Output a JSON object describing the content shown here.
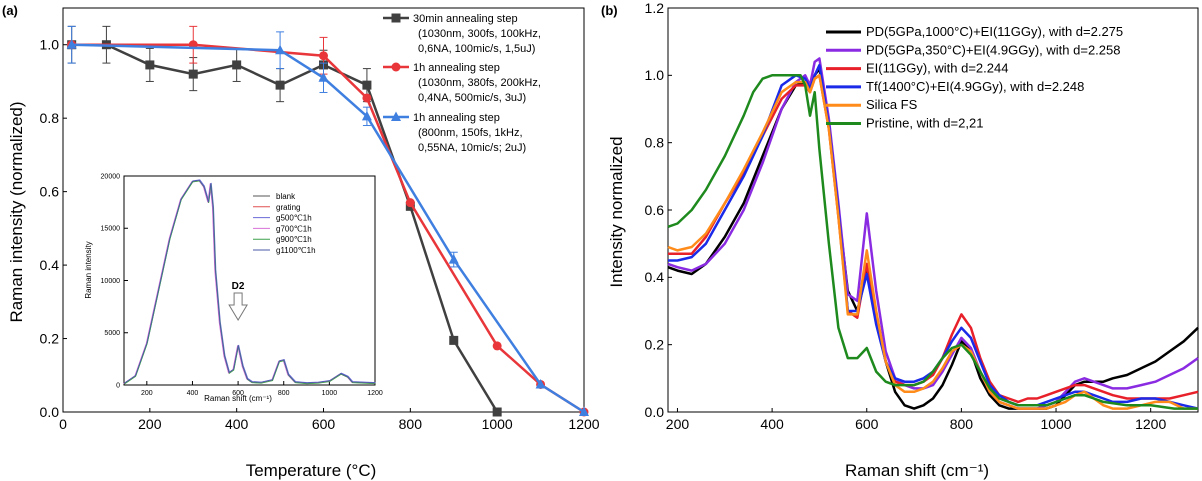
{
  "chart_data": [
    {
      "type": "line",
      "panel_label": "(a)",
      "xlabel": "Temperature (°C)",
      "ylabel": "Raman intensity (normalized)",
      "xlim": [
        0,
        1200
      ],
      "ylim": [
        0.0,
        1.1
      ],
      "xticks": [
        0,
        200,
        400,
        600,
        800,
        1000,
        1200
      ],
      "yticks": [
        0.0,
        0.2,
        0.4,
        0.6,
        0.8,
        1.0
      ],
      "grid": false,
      "legend_position": "top-right",
      "series": [
        {
          "name": "30min annealing step",
          "legend_lines": [
            "30min annealing step",
            "(1030nm, 300fs, 100kHz,",
            "0,6NA, 100mic/s, 1,5uJ)"
          ],
          "color": "#404040",
          "marker": "square",
          "x": [
            20,
            100,
            200,
            300,
            400,
            500,
            600,
            700,
            800,
            900,
            1000
          ],
          "y": [
            1.0,
            1.0,
            0.945,
            0.92,
            0.945,
            0.89,
            0.945,
            0.89,
            0.56,
            0.195,
            0.0
          ],
          "err": [
            0.05,
            0.05,
            0.045,
            0.045,
            0.045,
            0.045,
            0.04,
            0.045,
            0.0,
            0.0,
            0.0
          ]
        },
        {
          "name": "1h annealing step",
          "legend_lines": [
            "1h annealing step",
            "(1030nm, 380fs, 200kHz,",
            "0,4NA, 500mic/s, 3uJ)"
          ],
          "color": "#e8363a",
          "marker": "circle",
          "x": [
            20,
            300,
            600,
            700,
            800,
            1000,
            1100,
            1200
          ],
          "y": [
            1.0,
            1.0,
            0.97,
            0.855,
            0.57,
            0.18,
            0.075,
            0.0
          ],
          "err": [
            0.0,
            0.05,
            0.05,
            0.0,
            0.0,
            0.0,
            0.0,
            0.0
          ]
        },
        {
          "name": "1h annealing step",
          "legend_lines": [
            "1h annealing step",
            "(800nm, 150fs, 1kHz,",
            "0,55NA, 10mic/s; 2uJ)"
          ],
          "color": "#3f7fe0",
          "marker": "triangle",
          "x": [
            20,
            500,
            600,
            700,
            900,
            1100,
            1200
          ],
          "y": [
            1.0,
            0.985,
            0.91,
            0.805,
            0.415,
            0.075,
            0.0
          ],
          "err": [
            0.05,
            0.05,
            0.04,
            0.025,
            0.02,
            0.0,
            0.0
          ]
        }
      ],
      "inset": {
        "xlabel": "Raman shift (cm⁻¹)",
        "ylabel": "Raman intensity",
        "xlim": [
          100,
          1200
        ],
        "ylim": [
          0,
          20000
        ],
        "xticks": [
          200,
          400,
          600,
          800,
          1000,
          1200
        ],
        "yticks": [
          0,
          5000,
          10000,
          15000,
          20000
        ],
        "annotation": "D2",
        "legend": [
          "blank",
          "grating",
          "g500℃1h",
          "g700℃1h",
          "g900℃1h",
          "g1100℃1h"
        ],
        "legend_colors": [
          "#555555",
          "#e05050",
          "#6a6ad8",
          "#d870d8",
          "#3aa04a",
          "#4a5aa8"
        ],
        "x": [
          100,
          150,
          200,
          250,
          300,
          350,
          400,
          430,
          450,
          470,
          480,
          490,
          500,
          520,
          540,
          560,
          580,
          600,
          620,
          640,
          660,
          700,
          750,
          780,
          800,
          820,
          850,
          900,
          950,
          1000,
          1050,
          1080,
          1100,
          1150,
          1200
        ],
        "y": [
          150,
          900,
          4000,
          9000,
          14000,
          17800,
          19500,
          19600,
          19000,
          17500,
          19300,
          17000,
          11000,
          6000,
          2800,
          1200,
          1500,
          3800,
          1800,
          600,
          300,
          250,
          500,
          2300,
          2400,
          1000,
          300,
          200,
          250,
          400,
          1100,
          800,
          300,
          250,
          200
        ]
      }
    },
    {
      "type": "line",
      "panel_label": "(b)",
      "xlabel": "Raman shift (cm⁻¹)",
      "ylabel": "Intensity normalized",
      "xlim": [
        180,
        1300
      ],
      "ylim": [
        0.0,
        1.2
      ],
      "xticks": [
        200,
        400,
        600,
        800,
        1000,
        1200
      ],
      "yticks": [
        0.0,
        0.2,
        0.4,
        0.6,
        0.8,
        1.0,
        1.2
      ],
      "grid": false,
      "legend_position": "top-right",
      "series": [
        {
          "name": "PD(5GPa,1000°C)+EI(11GGy), with d=2.275",
          "color": "#000000",
          "x": [
            180,
            200,
            230,
            260,
            300,
            340,
            380,
            420,
            450,
            470,
            480,
            490,
            500,
            520,
            540,
            560,
            580,
            600,
            620,
            640,
            660,
            680,
            700,
            720,
            740,
            760,
            780,
            800,
            820,
            840,
            860,
            880,
            900,
            920,
            940,
            960,
            980,
            1000,
            1020,
            1040,
            1060,
            1080,
            1100,
            1120,
            1150,
            1180,
            1210,
            1240,
            1270,
            1300
          ],
          "y": [
            0.43,
            0.42,
            0.41,
            0.44,
            0.52,
            0.62,
            0.76,
            0.9,
            0.97,
            0.98,
            0.96,
            1.0,
            1.02,
            0.85,
            0.6,
            0.36,
            0.3,
            0.42,
            0.28,
            0.15,
            0.06,
            0.02,
            0.01,
            0.02,
            0.04,
            0.08,
            0.14,
            0.21,
            0.18,
            0.1,
            0.05,
            0.02,
            0.01,
            0.01,
            0.01,
            0.01,
            0.01,
            0.02,
            0.05,
            0.08,
            0.09,
            0.09,
            0.09,
            0.1,
            0.11,
            0.13,
            0.15,
            0.18,
            0.21,
            0.25
          ]
        },
        {
          "name": "PD(5GPa,350°C)+EI(4.9GGy), with d=2.258",
          "color": "#8a2be2",
          "x": [
            180,
            200,
            230,
            260,
            300,
            340,
            380,
            420,
            450,
            470,
            480,
            490,
            500,
            520,
            540,
            560,
            580,
            600,
            620,
            640,
            660,
            680,
            700,
            720,
            740,
            760,
            780,
            800,
            820,
            840,
            860,
            880,
            900,
            920,
            940,
            960,
            980,
            1000,
            1020,
            1040,
            1060,
            1080,
            1100,
            1120,
            1150,
            1180,
            1210,
            1240,
            1270,
            1300
          ],
          "y": [
            0.44,
            0.43,
            0.42,
            0.44,
            0.5,
            0.6,
            0.74,
            0.9,
            0.98,
            1.0,
            0.97,
            1.04,
            1.05,
            0.87,
            0.62,
            0.35,
            0.33,
            0.59,
            0.36,
            0.18,
            0.1,
            0.08,
            0.07,
            0.07,
            0.08,
            0.12,
            0.17,
            0.22,
            0.19,
            0.12,
            0.06,
            0.03,
            0.02,
            0.01,
            0.01,
            0.01,
            0.02,
            0.03,
            0.06,
            0.09,
            0.1,
            0.09,
            0.08,
            0.07,
            0.07,
            0.08,
            0.09,
            0.11,
            0.13,
            0.16
          ]
        },
        {
          "name": "EI(11GGy), with d=2.244",
          "color": "#e8202a",
          "x": [
            180,
            200,
            230,
            260,
            300,
            340,
            380,
            420,
            450,
            470,
            480,
            490,
            500,
            520,
            540,
            560,
            580,
            600,
            620,
            640,
            660,
            680,
            700,
            720,
            740,
            760,
            780,
            800,
            820,
            840,
            860,
            880,
            900,
            920,
            940,
            960,
            980,
            1000,
            1020,
            1040,
            1060,
            1080,
            1100,
            1120,
            1150,
            1180,
            1210,
            1240,
            1270,
            1300
          ],
          "y": [
            0.47,
            0.47,
            0.47,
            0.52,
            0.62,
            0.71,
            0.82,
            0.93,
            0.97,
            0.97,
            0.95,
            0.99,
            1.0,
            0.84,
            0.58,
            0.3,
            0.28,
            0.44,
            0.28,
            0.15,
            0.09,
            0.08,
            0.08,
            0.09,
            0.11,
            0.16,
            0.23,
            0.29,
            0.25,
            0.16,
            0.09,
            0.05,
            0.04,
            0.03,
            0.04,
            0.04,
            0.05,
            0.06,
            0.07,
            0.08,
            0.08,
            0.07,
            0.06,
            0.05,
            0.04,
            0.04,
            0.04,
            0.04,
            0.05,
            0.06
          ]
        },
        {
          "name": "Tf(1400°C)+EI(4.9GGy), with d=2.248",
          "color": "#1a2ae8",
          "x": [
            180,
            200,
            230,
            260,
            300,
            340,
            380,
            420,
            450,
            470,
            480,
            490,
            500,
            520,
            540,
            560,
            580,
            600,
            620,
            640,
            660,
            680,
            700,
            720,
            740,
            760,
            780,
            800,
            820,
            840,
            860,
            880,
            900,
            920,
            940,
            960,
            980,
            1000,
            1020,
            1040,
            1060,
            1080,
            1100,
            1120,
            1150,
            1180,
            1210,
            1240,
            1270,
            1300
          ],
          "y": [
            0.45,
            0.45,
            0.46,
            0.5,
            0.6,
            0.7,
            0.82,
            0.97,
            1.0,
            0.99,
            0.96,
            1.0,
            1.03,
            0.85,
            0.6,
            0.3,
            0.3,
            0.41,
            0.26,
            0.15,
            0.1,
            0.09,
            0.09,
            0.1,
            0.12,
            0.16,
            0.21,
            0.25,
            0.22,
            0.15,
            0.08,
            0.05,
            0.03,
            0.02,
            0.02,
            0.02,
            0.03,
            0.04,
            0.05,
            0.06,
            0.06,
            0.05,
            0.04,
            0.03,
            0.03,
            0.04,
            0.04,
            0.03,
            0.02,
            0.01
          ]
        },
        {
          "name": "Silica FS",
          "color": "#ff8c1a",
          "x": [
            180,
            200,
            230,
            260,
            300,
            340,
            380,
            420,
            450,
            470,
            480,
            490,
            500,
            520,
            540,
            560,
            580,
            600,
            620,
            640,
            660,
            680,
            700,
            720,
            740,
            760,
            780,
            800,
            820,
            840,
            860,
            880,
            900,
            920,
            940,
            960,
            980,
            1000,
            1020,
            1040,
            1060,
            1080,
            1100,
            1120,
            1150,
            1180,
            1210,
            1240,
            1270,
            1300
          ],
          "y": [
            0.49,
            0.48,
            0.49,
            0.53,
            0.62,
            0.72,
            0.83,
            0.95,
            0.98,
            0.98,
            0.95,
            0.99,
            1.0,
            0.84,
            0.58,
            0.29,
            0.29,
            0.48,
            0.3,
            0.15,
            0.08,
            0.06,
            0.06,
            0.07,
            0.09,
            0.13,
            0.18,
            0.2,
            0.18,
            0.12,
            0.06,
            0.03,
            0.02,
            0.01,
            0.01,
            0.01,
            0.01,
            0.02,
            0.03,
            0.05,
            0.06,
            0.04,
            0.02,
            0.01,
            0.01,
            0.02,
            0.03,
            0.03,
            0.01,
            0.01
          ]
        },
        {
          "name": "Pristine, with d=2,21",
          "color": "#1e8a1e",
          "x": [
            180,
            200,
            230,
            260,
            300,
            340,
            360,
            380,
            400,
            420,
            440,
            460,
            470,
            480,
            490,
            500,
            520,
            540,
            560,
            580,
            600,
            620,
            640,
            660,
            680,
            700,
            720,
            740,
            760,
            780,
            800,
            820,
            840,
            860,
            880,
            900,
            920,
            940,
            960,
            980,
            1000,
            1020,
            1040,
            1060,
            1080,
            1100,
            1150,
            1200,
            1250,
            1300
          ],
          "y": [
            0.55,
            0.56,
            0.6,
            0.66,
            0.76,
            0.88,
            0.95,
            0.99,
            1.0,
            1.0,
            1.0,
            1.0,
            0.97,
            0.88,
            0.95,
            0.78,
            0.5,
            0.25,
            0.16,
            0.16,
            0.19,
            0.12,
            0.09,
            0.08,
            0.08,
            0.08,
            0.09,
            0.12,
            0.16,
            0.19,
            0.2,
            0.17,
            0.12,
            0.07,
            0.04,
            0.03,
            0.02,
            0.02,
            0.02,
            0.02,
            0.03,
            0.04,
            0.05,
            0.05,
            0.04,
            0.03,
            0.02,
            0.02,
            0.01,
            0.01
          ]
        }
      ]
    }
  ]
}
